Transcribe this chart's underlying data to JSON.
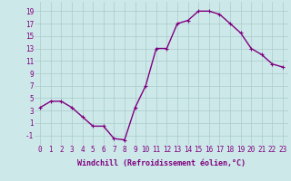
{
  "x": [
    0,
    1,
    2,
    3,
    4,
    5,
    6,
    7,
    8,
    9,
    10,
    11,
    12,
    13,
    14,
    15,
    16,
    17,
    18,
    19,
    20,
    21,
    22,
    23
  ],
  "y": [
    3.5,
    4.5,
    4.5,
    3.5,
    2.0,
    0.5,
    0.5,
    -1.5,
    -1.7,
    3.5,
    7.0,
    13.0,
    13.0,
    17.0,
    17.5,
    19.0,
    19.0,
    18.5,
    17.0,
    15.5,
    13.0,
    12.0,
    10.5,
    10.0
  ],
  "line_color": "#800080",
  "marker": "+",
  "marker_size": 3,
  "linewidth": 1.0,
  "xlabel": "Windchill (Refroidissement éolien,°C)",
  "xlabel_fontsize": 6.0,
  "ytick_labels": [
    "-1",
    "1",
    "3",
    "5",
    "7",
    "9",
    "11",
    "13",
    "15",
    "17",
    "19"
  ],
  "ytick_values": [
    -1,
    1,
    3,
    5,
    7,
    9,
    11,
    13,
    15,
    17,
    19
  ],
  "xlim": [
    -0.5,
    23.5
  ],
  "ylim": [
    -2.5,
    20.5
  ],
  "bg_color": "#cce8e8",
  "grid_color": "#aacccc",
  "tick_label_color": "#800080",
  "tick_label_fontsize": 5.5,
  "font_family": "monospace"
}
